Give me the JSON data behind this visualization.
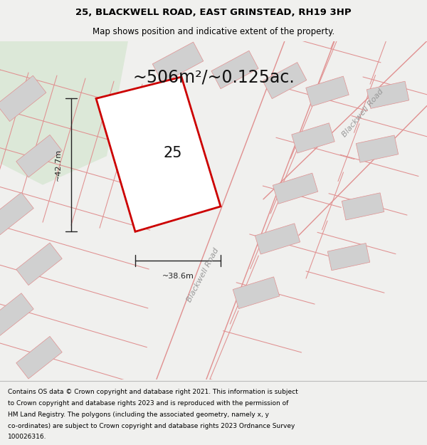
{
  "title_line1": "25, BLACKWELL ROAD, EAST GRINSTEAD, RH19 3HP",
  "title_line2": "Map shows position and indicative extent of the property.",
  "area_text": "~506m²/~0.125ac.",
  "label_25": "25",
  "dim_height": "~42.7m",
  "dim_width": "~38.6m",
  "road_label1": "Blackwell Road",
  "road_label2": "Blackwell Road",
  "footer_text": "Contains OS data © Crown copyright and database right 2021. This information is subject to Crown copyright and database rights 2023 and is reproduced with the permission of HM Land Registry. The polygons (including the associated geometry, namely x, y co-ordinates) are subject to Crown copyright and database rights 2023 Ordnance Survey 100026316.",
  "bg_color": "#f0f0ee",
  "map_bg": "#ffffff",
  "green_area_color": "#dce8d8",
  "plot_outline_color": "#cc0000",
  "plot_fill_color": "#ffffff",
  "other_plot_color": "#d0d0d0",
  "road_line_color": "#e09090",
  "dim_color": "#222222",
  "footer_bg": "#ffffff",
  "title_fontsize": 9.5,
  "subtitle_fontsize": 8.5,
  "area_fontsize": 17,
  "label_fontsize": 15,
  "dim_fontsize": 8,
  "road_fontsize": 8,
  "footer_fontsize": 6.5
}
